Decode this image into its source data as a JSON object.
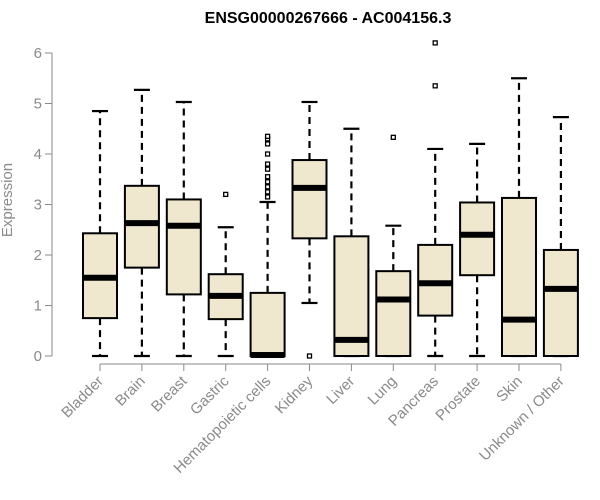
{
  "chart_data": {
    "type": "boxplot",
    "title": "ENSG00000267666 - AC004156.3",
    "xlabel": "",
    "ylabel": "Expression",
    "ylim": [
      0,
      6
    ],
    "yticks": [
      0,
      1,
      2,
      3,
      4,
      5,
      6
    ],
    "grid": false,
    "colors": {
      "box_fill": "#efe8cf",
      "stroke": "#000000",
      "axis": "#8a8a8a"
    },
    "categories": [
      "Bladder",
      "Brain",
      "Breast",
      "Gastric",
      "Hematopoietic cells",
      "Kidney",
      "Liver",
      "Lung",
      "Pancreas",
      "Prostate",
      "Skin",
      "Unknown / Other"
    ],
    "boxes": [
      {
        "category": "Bladder",
        "whisker_low": 0,
        "q1": 0.75,
        "median": 1.55,
        "q3": 2.43,
        "whisker_high": 4.85,
        "outliers": []
      },
      {
        "category": "Brain",
        "whisker_low": 0,
        "q1": 1.75,
        "median": 2.63,
        "q3": 3.37,
        "whisker_high": 5.27,
        "outliers": []
      },
      {
        "category": "Breast",
        "whisker_low": 0,
        "q1": 1.22,
        "median": 2.58,
        "q3": 3.1,
        "whisker_high": 5.03,
        "outliers": []
      },
      {
        "category": "Gastric",
        "whisker_low": 0,
        "q1": 0.73,
        "median": 1.19,
        "q3": 1.62,
        "whisker_high": 2.55,
        "outliers": [
          3.2
        ]
      },
      {
        "category": "Hematopoietic cells",
        "whisker_low": 0,
        "q1": 0,
        "median": 0.02,
        "q3": 1.25,
        "whisker_high": 3.05,
        "outliers": [
          3.15,
          3.25,
          3.35,
          3.45,
          3.55,
          3.7,
          3.8,
          4.0,
          4.2,
          4.3,
          4.35
        ]
      },
      {
        "category": "Kidney",
        "whisker_low": 1.05,
        "q1": 2.33,
        "median": 3.33,
        "q3": 3.88,
        "whisker_high": 5.03,
        "outliers": [
          0
        ]
      },
      {
        "category": "Liver",
        "whisker_low": 0,
        "q1": 0,
        "median": 0.32,
        "q3": 2.37,
        "whisker_high": 4.5,
        "outliers": []
      },
      {
        "category": "Lung",
        "whisker_low": 0,
        "q1": 0,
        "median": 1.12,
        "q3": 1.68,
        "whisker_high": 2.58,
        "outliers": [
          4.33
        ]
      },
      {
        "category": "Pancreas",
        "whisker_low": 0,
        "q1": 0.8,
        "median": 1.44,
        "q3": 2.2,
        "whisker_high": 4.1,
        "outliers": [
          5.35,
          6.2
        ]
      },
      {
        "category": "Prostate",
        "whisker_low": 0,
        "q1": 1.6,
        "median": 2.4,
        "q3": 3.04,
        "whisker_high": 4.2,
        "outliers": []
      },
      {
        "category": "Skin",
        "whisker_low": 0,
        "q1": 0,
        "median": 0.72,
        "q3": 3.13,
        "whisker_high": 5.5,
        "outliers": []
      },
      {
        "category": "Unknown / Other",
        "whisker_low": 0,
        "q1": 0,
        "median": 1.33,
        "q3": 2.1,
        "whisker_high": 4.73,
        "outliers": []
      }
    ]
  }
}
